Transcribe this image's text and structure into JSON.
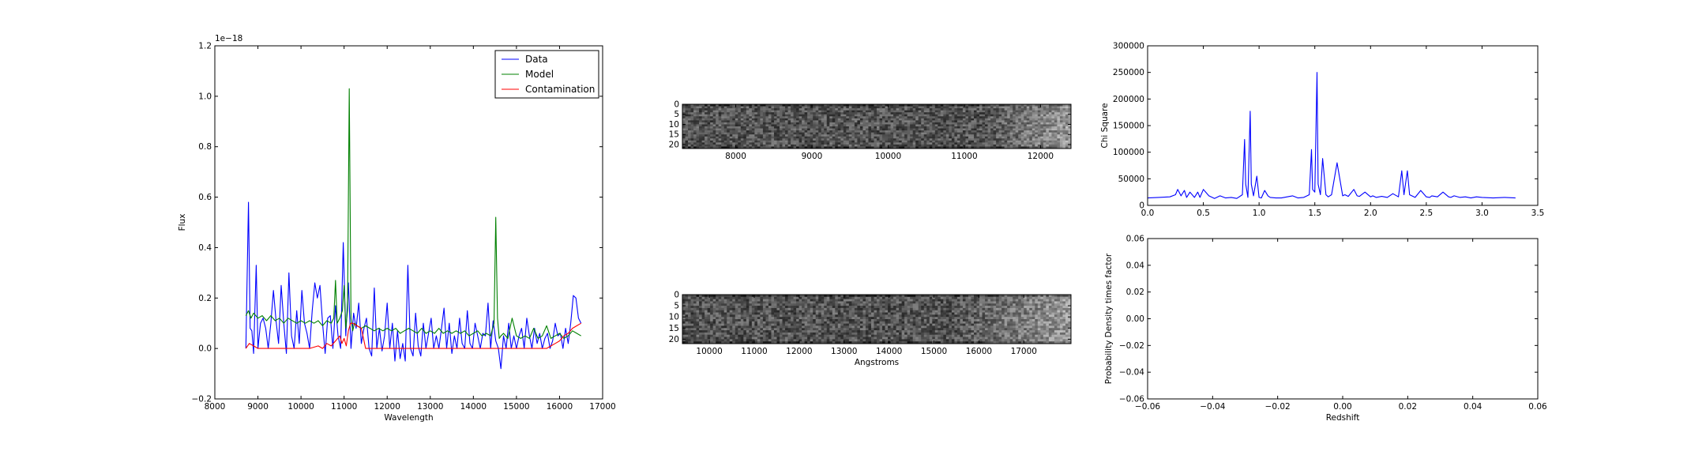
{
  "chart_data": [
    {
      "type": "line",
      "id": "spectrum",
      "xlabel": "Wavelength",
      "ylabel": "Flux",
      "offset_text": "1e−18",
      "xlim": [
        8000,
        17000
      ],
      "ylim": [
        -0.2,
        1.2
      ],
      "xticks": [
        8000,
        9000,
        10000,
        11000,
        12000,
        13000,
        14000,
        15000,
        16000,
        17000
      ],
      "yticks": [
        -0.2,
        0.0,
        0.2,
        0.4,
        0.6,
        0.8,
        1.0,
        1.2
      ],
      "ytick_labels": [
        "−0.2",
        "0.0",
        "0.2",
        "0.4",
        "0.6",
        "0.8",
        "1.0",
        "1.2"
      ],
      "legend_position": "top-right",
      "series": [
        {
          "name": "Data",
          "color": "#0000ff",
          "x": [
            8720,
            8780,
            8820,
            8860,
            8900,
            8960,
            9000,
            9060,
            9120,
            9180,
            9240,
            9300,
            9360,
            9420,
            9480,
            9540,
            9600,
            9660,
            9720,
            9780,
            9840,
            9900,
            9960,
            10020,
            10080,
            10140,
            10200,
            10260,
            10320,
            10380,
            10440,
            10500,
            10560,
            10620,
            10680,
            10740,
            10800,
            10860,
            10920,
            10980,
            11040,
            11100,
            11160,
            11220,
            11280,
            11340,
            11400,
            11460,
            11520,
            11580,
            11640,
            11700,
            11760,
            11820,
            11880,
            11940,
            12000,
            12060,
            12120,
            12180,
            12240,
            12300,
            12360,
            12420,
            12480,
            12540,
            12600,
            12660,
            12720,
            12780,
            12840,
            12900,
            12960,
            13020,
            13080,
            13140,
            13200,
            13260,
            13320,
            13380,
            13440,
            13500,
            13560,
            13620,
            13680,
            13740,
            13800,
            13860,
            13920,
            13980,
            14040,
            14100,
            14160,
            14220,
            14280,
            14340,
            14400,
            14460,
            14520,
            14580,
            14640,
            14700,
            14760,
            14820,
            14880,
            14940,
            15000,
            15060,
            15120,
            15180,
            15240,
            15300,
            15360,
            15420,
            15480,
            15540,
            15600,
            15660,
            15720,
            15780,
            15840,
            15900,
            15960,
            16020,
            16080,
            16140,
            16200,
            16260,
            16320,
            16380,
            16440,
            16500
          ],
          "y": [
            0.0,
            0.58,
            0.08,
            0.07,
            -0.02,
            0.33,
            0.0,
            0.1,
            0.12,
            0.08,
            0.0,
            0.1,
            0.23,
            0.11,
            0.02,
            0.25,
            0.1,
            -0.02,
            0.3,
            0.05,
            0.0,
            0.15,
            0.02,
            0.23,
            0.1,
            0.06,
            0.0,
            0.15,
            0.26,
            0.2,
            0.25,
            0.1,
            -0.02,
            0.12,
            0.13,
            0.0,
            0.17,
            0.05,
            0.0,
            0.42,
            0.05,
            0.26,
            0.0,
            0.14,
            0.08,
            0.18,
            0.02,
            0.08,
            0.12,
            0.0,
            -0.03,
            0.24,
            0.0,
            0.08,
            -0.01,
            0.05,
            0.18,
            0.0,
            0.1,
            -0.05,
            0.07,
            -0.04,
            0.02,
            -0.05,
            0.33,
            0.0,
            -0.03,
            0.14,
            0.01,
            -0.03,
            0.1,
            0.0,
            0.06,
            0.12,
            0.0,
            0.05,
            0.0,
            0.08,
            0.16,
            0.0,
            0.1,
            -0.02,
            0.05,
            0.0,
            0.12,
            0.02,
            0.0,
            0.15,
            0.02,
            0.0,
            0.1,
            0.05,
            0.0,
            0.06,
            0.05,
            0.18,
            0.0,
            0.11,
            0.03,
            0.0,
            -0.08,
            0.05,
            0.0,
            0.1,
            0.0,
            0.05,
            0.0,
            0.05,
            0.08,
            0.0,
            0.12,
            0.05,
            0.0,
            0.08,
            0.02,
            0.06,
            0.0,
            0.04,
            0.06,
            0.0,
            0.03,
            0.1,
            0.05,
            0.06,
            0.0,
            0.08,
            0.02,
            0.1,
            0.21,
            0.2,
            0.12,
            0.1
          ]
        },
        {
          "name": "Model",
          "color": "#008000",
          "x": [
            8720,
            8780,
            8840,
            8900,
            9000,
            9100,
            9200,
            9300,
            9400,
            9500,
            9600,
            9700,
            9800,
            9900,
            10000,
            10100,
            10200,
            10300,
            10400,
            10500,
            10600,
            10700,
            10760,
            10800,
            10840,
            10900,
            10960,
            11000,
            11040,
            11080,
            11120,
            11160,
            11200,
            11240,
            11300,
            11400,
            11500,
            11600,
            11700,
            11800,
            11900,
            12000,
            12100,
            12200,
            12300,
            12400,
            12500,
            12600,
            12700,
            12800,
            12900,
            13000,
            13100,
            13200,
            13300,
            13400,
            13500,
            13600,
            13700,
            13800,
            13900,
            14000,
            14100,
            14200,
            14300,
            14400,
            14480,
            14520,
            14560,
            14600,
            14640,
            14700,
            14800,
            14900,
            15000,
            15100,
            15200,
            15300,
            15400,
            15500,
            15600,
            15700,
            15800,
            15900,
            16000,
            16100,
            16200,
            16300,
            16400,
            16500
          ],
          "y": [
            0.13,
            0.15,
            0.12,
            0.14,
            0.12,
            0.13,
            0.11,
            0.13,
            0.11,
            0.12,
            0.1,
            0.12,
            0.11,
            0.1,
            0.11,
            0.1,
            0.11,
            0.1,
            0.11,
            0.09,
            0.11,
            0.1,
            0.12,
            0.27,
            0.1,
            0.12,
            0.15,
            0.25,
            0.08,
            0.15,
            1.03,
            0.12,
            0.07,
            0.1,
            0.09,
            0.08,
            0.09,
            0.08,
            0.07,
            0.08,
            0.07,
            0.08,
            0.07,
            0.08,
            0.06,
            0.07,
            0.08,
            0.07,
            0.06,
            0.08,
            0.06,
            0.07,
            0.06,
            0.08,
            0.06,
            0.07,
            0.06,
            0.07,
            0.06,
            0.07,
            0.05,
            0.06,
            0.07,
            0.05,
            0.06,
            0.05,
            0.1,
            0.52,
            0.12,
            0.04,
            0.05,
            0.06,
            0.04,
            0.12,
            0.05,
            0.04,
            0.05,
            0.04,
            0.08,
            0.04,
            0.05,
            0.09,
            0.04,
            0.05,
            0.06,
            0.04,
            0.05,
            0.07,
            0.06,
            0.05
          ]
        },
        {
          "name": "Contamination",
          "color": "#ff0000",
          "x": [
            8720,
            8800,
            8900,
            9000,
            9200,
            9400,
            9600,
            9800,
            10000,
            10200,
            10400,
            10500,
            10600,
            10700,
            10800,
            10900,
            10950,
            11000,
            11050,
            11100,
            11150,
            11200,
            11300,
            11400,
            11500,
            11600,
            11700,
            11800,
            12000,
            12500,
            13000,
            13500,
            14000,
            14500,
            15000,
            15500,
            15600,
            15700,
            15800,
            15900,
            16000,
            16100,
            16200,
            16300,
            16400,
            16500
          ],
          "y": [
            0.0,
            0.02,
            0.01,
            0.0,
            0.0,
            0.0,
            0.0,
            0.0,
            0.0,
            0.0,
            0.01,
            0.0,
            0.02,
            0.01,
            0.03,
            0.05,
            0.02,
            0.04,
            0.01,
            0.07,
            0.1,
            0.1,
            0.09,
            0.08,
            0.0,
            0.0,
            0.0,
            0.0,
            0.0,
            0.0,
            0.0,
            0.0,
            0.0,
            0.0,
            0.0,
            0.0,
            0.0,
            0.0,
            0.01,
            0.02,
            0.03,
            0.05,
            0.06,
            0.08,
            0.09,
            0.1
          ]
        }
      ]
    },
    {
      "type": "heatmap",
      "id": "stamp-top",
      "xticks": [
        8000,
        9000,
        10000,
        11000,
        12000
      ],
      "xlim": [
        7300,
        12400
      ],
      "yticks": [
        0,
        5,
        10,
        15,
        20
      ],
      "ylim": [
        0,
        22
      ]
    },
    {
      "type": "heatmap",
      "id": "stamp-bottom",
      "xlabel": "Angstroms",
      "xticks": [
        10000,
        11000,
        12000,
        13000,
        14000,
        15000,
        16000,
        17000
      ],
      "xlim": [
        9400,
        18050
      ],
      "yticks": [
        0,
        5,
        10,
        15,
        20
      ],
      "ylim": [
        0,
        22
      ]
    },
    {
      "type": "line",
      "id": "chisq",
      "ylabel": "Chi Square",
      "xlim": [
        0.0,
        3.5
      ],
      "ylim": [
        0,
        300000
      ],
      "xticks": [
        0.0,
        0.5,
        1.0,
        1.5,
        2.0,
        2.5,
        3.0,
        3.5
      ],
      "xtick_labels": [
        "0.0",
        "0.5",
        "1.0",
        "1.5",
        "2.0",
        "2.5",
        "3.0",
        "3.5"
      ],
      "yticks": [
        0,
        50000,
        100000,
        150000,
        200000,
        250000,
        300000
      ],
      "series": [
        {
          "color": "#0000ff",
          "x": [
            0.0,
            0.1,
            0.2,
            0.25,
            0.27,
            0.3,
            0.33,
            0.35,
            0.38,
            0.42,
            0.45,
            0.47,
            0.5,
            0.55,
            0.6,
            0.65,
            0.7,
            0.75,
            0.8,
            0.85,
            0.87,
            0.88,
            0.9,
            0.92,
            0.93,
            0.95,
            0.98,
            1.0,
            1.02,
            1.05,
            1.08,
            1.1,
            1.15,
            1.2,
            1.3,
            1.35,
            1.4,
            1.45,
            1.47,
            1.48,
            1.5,
            1.52,
            1.53,
            1.55,
            1.57,
            1.6,
            1.62,
            1.65,
            1.7,
            1.75,
            1.77,
            1.8,
            1.85,
            1.88,
            1.9,
            1.95,
            2.0,
            2.02,
            2.05,
            2.1,
            2.15,
            2.2,
            2.25,
            2.28,
            2.3,
            2.33,
            2.35,
            2.37,
            2.4,
            2.45,
            2.5,
            2.53,
            2.55,
            2.6,
            2.65,
            2.7,
            2.72,
            2.75,
            2.8,
            2.85,
            2.9,
            2.95,
            3.0,
            3.1,
            3.2,
            3.3
          ],
          "y": [
            14000,
            15000,
            16000,
            20000,
            30000,
            18000,
            28000,
            15000,
            25000,
            15000,
            25000,
            15000,
            30000,
            18000,
            13000,
            18000,
            14000,
            15000,
            13000,
            20000,
            124000,
            40000,
            15000,
            177000,
            40000,
            18000,
            55000,
            15000,
            14000,
            28000,
            18000,
            15000,
            14000,
            14000,
            18000,
            14000,
            15000,
            20000,
            105000,
            30000,
            25000,
            250000,
            40000,
            20000,
            88000,
            20000,
            16000,
            20000,
            80000,
            18000,
            20000,
            17000,
            30000,
            18000,
            17000,
            25000,
            16000,
            18000,
            15000,
            17000,
            15000,
            22000,
            16000,
            65000,
            20000,
            65000,
            20000,
            18000,
            15000,
            28000,
            16000,
            15000,
            18000,
            16000,
            25000,
            16000,
            15000,
            18000,
            15000,
            16000,
            14000,
            16000,
            15000,
            14000,
            15000,
            14000
          ]
        }
      ]
    },
    {
      "type": "line",
      "id": "probability",
      "xlabel": "Redshift",
      "ylabel": "Probability Density times factor",
      "xlim": [
        -0.06,
        0.06
      ],
      "ylim": [
        -0.06,
        0.06
      ],
      "xticks": [
        -0.06,
        -0.04,
        -0.02,
        0.0,
        0.02,
        0.04,
        0.06
      ],
      "xtick_labels": [
        "−0.06",
        "−0.04",
        "−0.02",
        "0.00",
        "0.02",
        "0.04",
        "0.06"
      ],
      "yticks": [
        -0.06,
        -0.04,
        -0.02,
        0.0,
        0.02,
        0.04,
        0.06
      ],
      "ytick_labels": [
        "−0.06",
        "−0.04",
        "−0.02",
        "0.00",
        "0.02",
        "0.04",
        "0.06"
      ],
      "series": []
    }
  ]
}
